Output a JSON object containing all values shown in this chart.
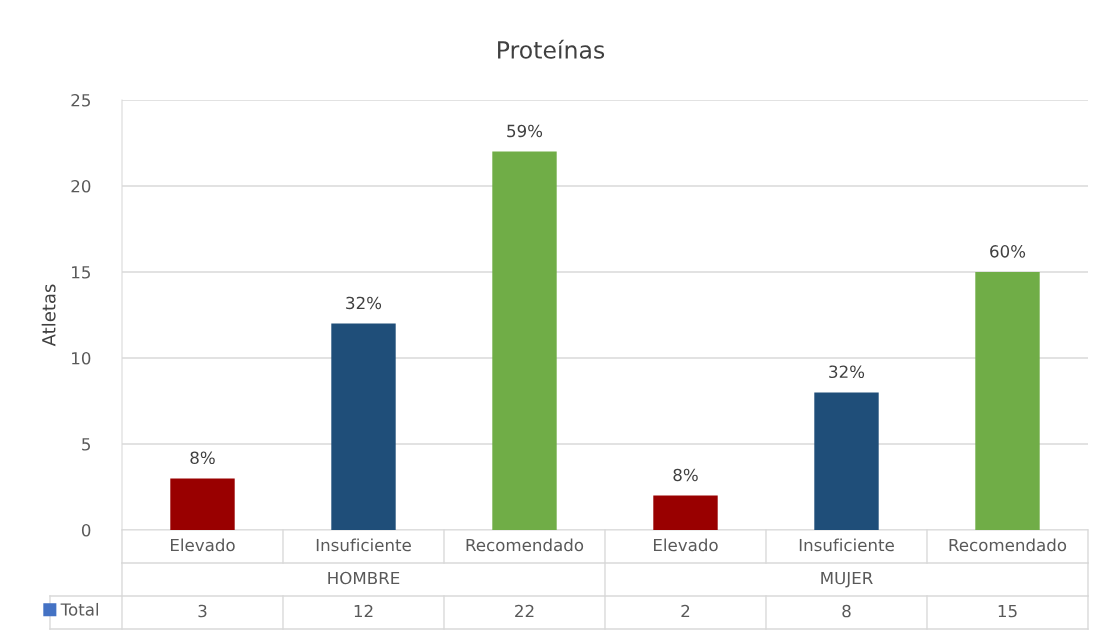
{
  "chart_data": {
    "type": "bar",
    "title": "Proteínas",
    "ylabel": "Atletas",
    "categories": [
      "Elevado",
      "Insuficiente",
      "Recomendado",
      "Elevado",
      "Insuficiente",
      "Recomendado"
    ],
    "annotations": [
      "HOMBRE",
      "MUJER",
      {
        "text": "8%",
        "y": 3
      },
      {
        "text": "32%",
        "y": 12
      },
      {
        "text": "59%",
        "y": 22
      },
      {
        "text": "8%",
        "y": 2
      },
      {
        "text": "32%",
        "y": 8
      },
      {
        "text": "60%",
        "y": 15
      }
    ],
    "series": [
      {
        "name": "Total",
        "color": "#4472c4",
        "colors": [
          "#990000",
          "#1f4e79",
          "#70ad47",
          "#990000",
          "#1f4e79",
          "#70ad47"
        ],
        "values": [
          3,
          12,
          22,
          2,
          8,
          15
        ],
        "value_labels": [
          "3",
          "12",
          "22",
          "2",
          "8",
          "15"
        ]
      }
    ],
    "ylim": [
      0,
      25
    ],
    "yticks": [
      0,
      5,
      10,
      15,
      20,
      25
    ],
    "grid": "y",
    "legend": "bottom left"
  }
}
